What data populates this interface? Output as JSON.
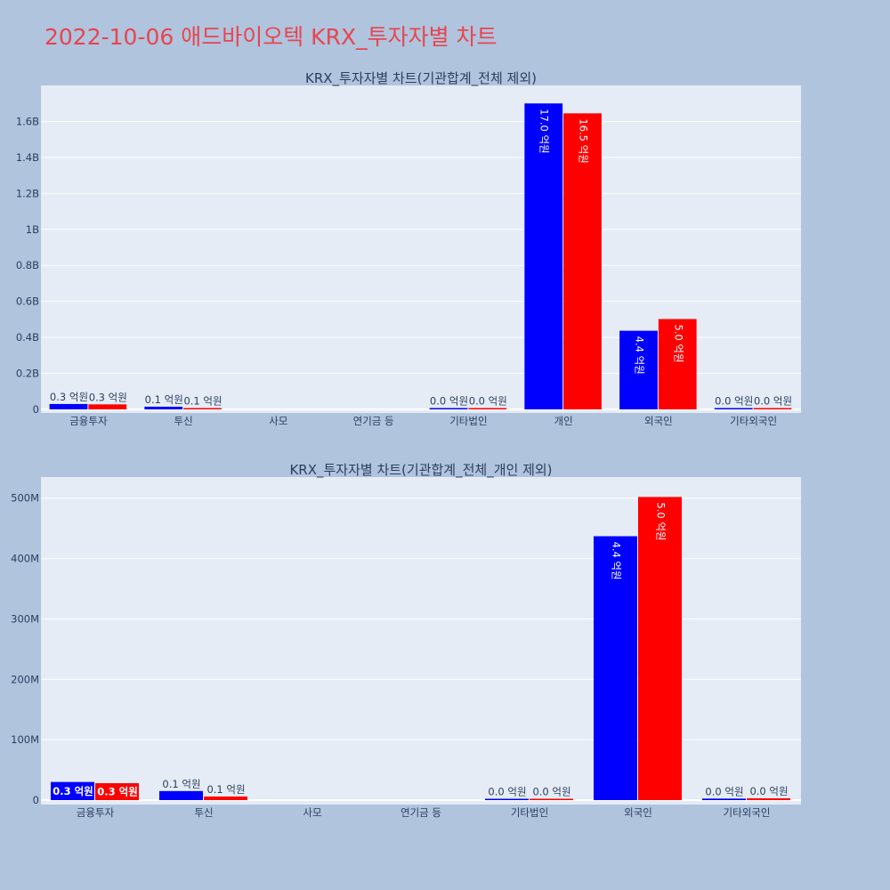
{
  "title": "2022-10-06 애드바이오텍 KRX_투자자별 차트",
  "colors": {
    "buy": "#0000ff",
    "sell": "#ff0000",
    "plot_bg": "#e5ecf6",
    "page_bg": "#b0c4de",
    "title": "#e8454f"
  },
  "chart_data": [
    {
      "type": "bar",
      "title": "KRX_투자자별 차트(기관합계_전체 제외)",
      "categories": [
        "금융투자",
        "투신",
        "사모",
        "연기금 등",
        "기타법인",
        "개인",
        "외국인",
        "기타외국인"
      ],
      "yticks": [
        {
          "value": 0,
          "label": "0"
        },
        {
          "value": 200000000,
          "label": "0.2B"
        },
        {
          "value": 400000000,
          "label": "0.4B"
        },
        {
          "value": 600000000,
          "label": "0.6B"
        },
        {
          "value": 800000000,
          "label": "0.8B"
        },
        {
          "value": 1000000000,
          "label": "1B"
        },
        {
          "value": 1200000000,
          "label": "1.2B"
        },
        {
          "value": 1400000000,
          "label": "1.4B"
        },
        {
          "value": 1600000000,
          "label": "1.6B"
        }
      ],
      "ylim": [
        0,
        1800000000
      ],
      "series": [
        {
          "values": [
            30000000,
            15000000,
            0,
            0,
            1500000,
            1700000000,
            437000000,
            2500000
          ],
          "labels": [
            "0.3 억원",
            "0.1 억원",
            "",
            "",
            "0.0 억원",
            "17.0 억원",
            "4.4 억원",
            "0.0 억원"
          ]
        },
        {
          "values": [
            28000000,
            6000000,
            0,
            0,
            1000000,
            1645000000,
            502000000,
            3000000
          ],
          "labels": [
            "0.3 억원",
            "0.1 억원",
            "",
            "",
            "0.0 억원",
            "16.5 억원",
            "5.0 억원",
            "0.0 억원"
          ]
        }
      ]
    },
    {
      "type": "bar",
      "title": "KRX_투자자별 차트(기관합계_전체_개인 제외)",
      "categories": [
        "금융투자",
        "투신",
        "사모",
        "연기금 등",
        "기타법인",
        "외국인",
        "기타외국인"
      ],
      "yticks": [
        {
          "value": 0,
          "label": "0"
        },
        {
          "value": 100000000,
          "label": "100M"
        },
        {
          "value": 200000000,
          "label": "200M"
        },
        {
          "value": 300000000,
          "label": "300M"
        },
        {
          "value": 400000000,
          "label": "400M"
        },
        {
          "value": 500000000,
          "label": "500M"
        }
      ],
      "ylim": [
        0,
        535000000
      ],
      "series": [
        {
          "values": [
            30000000,
            15000000,
            0,
            0,
            1500000,
            437000000,
            2500000
          ],
          "labels": [
            "0.3 억원",
            "0.1 억원",
            "",
            "",
            "0.0 억원",
            "4.4 억원",
            "0.0 억원"
          ]
        },
        {
          "values": [
            28000000,
            6000000,
            0,
            0,
            1000000,
            502000000,
            3000000
          ],
          "labels": [
            "0.3 억원",
            "0.1 억원",
            "",
            "",
            "0.0 억원",
            "5.0 억원",
            "0.0 억원"
          ]
        }
      ]
    }
  ]
}
